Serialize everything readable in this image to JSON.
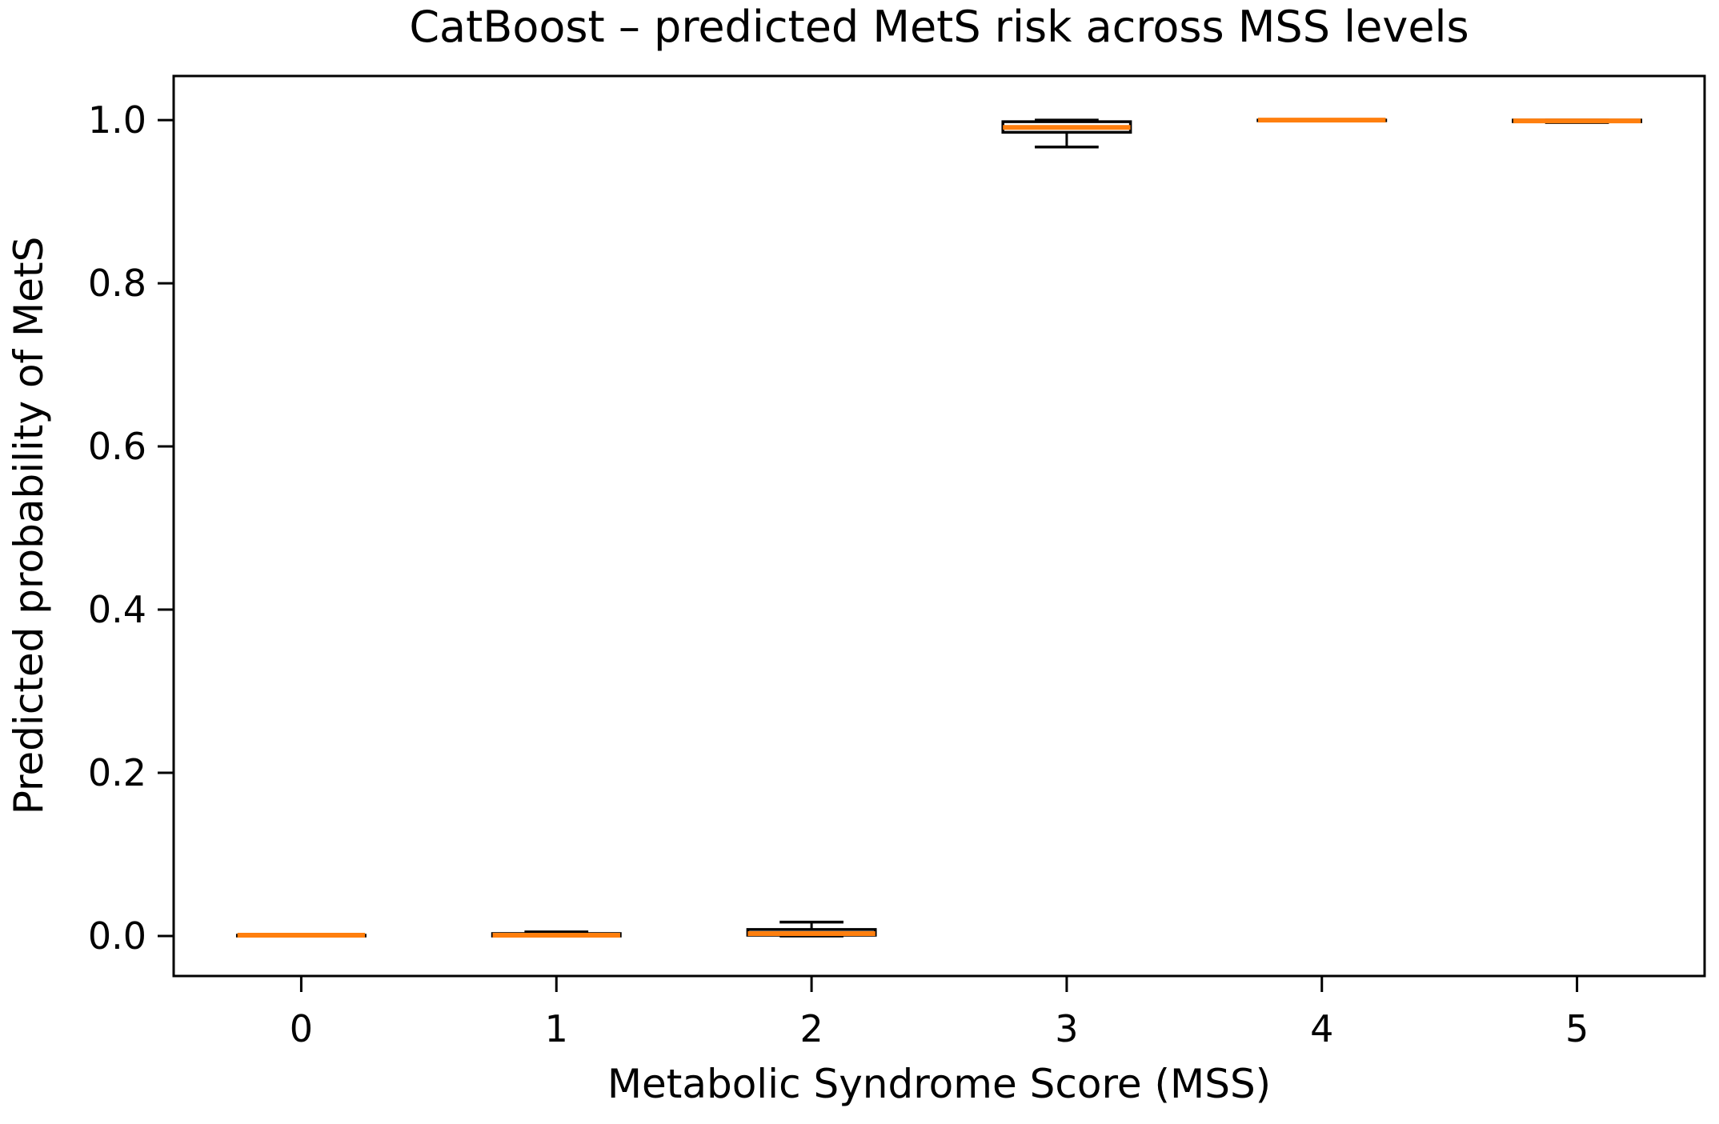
{
  "figure": {
    "title": "CatBoost – predicted MetS risk across MSS levels",
    "xlabel": "Metabolic Syndrome Score (MSS)",
    "ylabel": "Predicted probability of MetS"
  },
  "chart_data": {
    "type": "boxplot",
    "title": "CatBoost – predicted MetS risk across MSS levels",
    "xlabel": "Metabolic Syndrome Score (MSS)",
    "ylabel": "Predicted probability of MetS",
    "categories": [
      "0",
      "1",
      "2",
      "3",
      "4",
      "5"
    ],
    "ytick_labels": [
      "0.0",
      "0.2",
      "0.4",
      "0.6",
      "0.8",
      "1.0"
    ],
    "ylim": [
      -0.049,
      1.054
    ],
    "grid": false,
    "legend": "none",
    "colors": {
      "median": "#ff7f0e",
      "box_edge": "#000000",
      "whisker": "#000000",
      "cap": "#000000",
      "spine": "#000000",
      "background": "#ffffff"
    },
    "series": [
      {
        "category": "0",
        "whislo": 0.0,
        "q1": 0.0,
        "med": 0.001,
        "q3": 0.001,
        "whishi": 0.001,
        "fliers": []
      },
      {
        "category": "1",
        "whislo": 0.0,
        "q1": 0.0,
        "med": 0.001,
        "q3": 0.003,
        "whishi": 0.005,
        "fliers": []
      },
      {
        "category": "2",
        "whislo": 0.0,
        "q1": 0.001,
        "med": 0.003,
        "q3": 0.008,
        "whishi": 0.017,
        "fliers": []
      },
      {
        "category": "3",
        "whislo": 0.967,
        "q1": 0.985,
        "med": 0.991,
        "q3": 0.998,
        "whishi": 1.0,
        "fliers": []
      },
      {
        "category": "4",
        "whislo": 1.0,
        "q1": 1.0,
        "med": 1.0,
        "q3": 1.0,
        "whishi": 1.0,
        "fliers": []
      },
      {
        "category": "5",
        "whislo": 0.997,
        "q1": 0.998,
        "med": 0.999,
        "q3": 1.0,
        "whishi": 1.0,
        "fliers": []
      }
    ]
  }
}
